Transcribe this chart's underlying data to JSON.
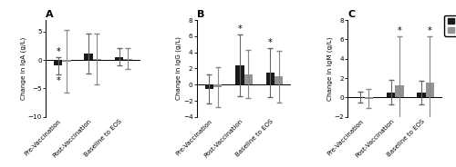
{
  "panels": [
    {
      "label": "A",
      "ylabel": "Change in IgA (g/L)",
      "ylim": [
        -10,
        7
      ],
      "yticks": [
        -10,
        -5,
        0,
        5
      ],
      "groups": [
        "Pre-Vaccination",
        "Post-Vaccination",
        "Baseline to EOS"
      ],
      "UP446_mean": [
        -1.0,
        1.1,
        0.5
      ],
      "UP446_sd": [
        1.5,
        3.5,
        1.5
      ],
      "Placebo_mean": [
        -0.3,
        0.2,
        0.2
      ],
      "Placebo_sd": [
        5.5,
        4.5,
        1.8
      ],
      "star_UP446": [
        true,
        false,
        false
      ],
      "star_Placebo": [
        false,
        false,
        false
      ]
    },
    {
      "label": "B",
      "ylabel": "Change in IgG (g/L)",
      "ylim": [
        -4,
        8
      ],
      "yticks": [
        -4,
        -2,
        0,
        2,
        4,
        6,
        8
      ],
      "groups": [
        "Pre-Vaccination",
        "Post-Vaccination",
        "Baseline to EOS"
      ],
      "UP446_mean": [
        -0.5,
        2.4,
        1.5
      ],
      "UP446_sd": [
        1.8,
        3.8,
        3.0
      ],
      "Placebo_mean": [
        -0.3,
        1.3,
        1.0
      ],
      "Placebo_sd": [
        2.5,
        3.0,
        3.2
      ],
      "star_UP446": [
        false,
        true,
        true
      ],
      "star_Placebo": [
        false,
        false,
        false
      ]
    },
    {
      "label": "C",
      "ylabel": "Change in IgM (g/L)",
      "ylim": [
        -2,
        8
      ],
      "yticks": [
        -2,
        0,
        2,
        4,
        6,
        8
      ],
      "groups": [
        "Pre-Vaccination",
        "Post-Vaccination",
        "Baseline to EOS"
      ],
      "UP446_mean": [
        0.05,
        0.55,
        0.5
      ],
      "UP446_sd": [
        0.6,
        1.3,
        1.2
      ],
      "Placebo_mean": [
        -0.1,
        1.3,
        1.5
      ],
      "Placebo_sd": [
        1.0,
        5.0,
        4.8
      ],
      "star_UP446": [
        false,
        false,
        false
      ],
      "star_Placebo": [
        false,
        true,
        true
      ]
    }
  ],
  "bar_width": 0.28,
  "UP446_color": "#1a1a1a",
  "Placebo_color": "#939393",
  "capsize": 2,
  "elinewidth": 0.8
}
